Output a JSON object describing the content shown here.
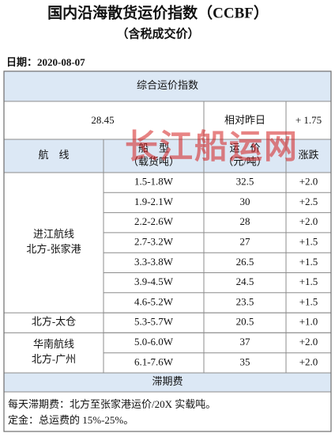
{
  "header": {
    "title": "国内沿海散货运价指数（CCBF）",
    "subtitle": "（含税成交价）"
  },
  "date": "日期：2020-08-07",
  "watermark": "长江船运网",
  "table": {
    "index_header": "综合运价指数",
    "index_value": "28.45",
    "compare_label": "相对昨日",
    "compare_value": "+ 1.75",
    "columns": [
      [
        "航　线"
      ],
      [
        "船　型",
        "（载货吨）"
      ],
      [
        "运　价",
        "（元/吨）"
      ],
      [
        "涨跌"
      ]
    ],
    "groups": [
      {
        "lines": [
          "进江航线",
          "北方-张家港"
        ],
        "rows": [
          [
            "1.5-1.8W",
            "32.5",
            "+2.0"
          ],
          [
            "1.9-2.1W",
            "30",
            "+2.5"
          ],
          [
            "2.2-2.6W",
            "28",
            "+2.0"
          ],
          [
            "2.7-3.2W",
            "27",
            "+1.5"
          ],
          [
            "3.3-3.8W",
            "26.5",
            "+1.5"
          ],
          [
            "3.9-4.5W",
            "24.5",
            "+1.5"
          ],
          [
            "4.6-5.2W",
            "23.5",
            "+1.5"
          ]
        ]
      },
      {
        "lines": [
          "北方-太仓"
        ],
        "rows": [
          [
            "5.3-5.7W",
            "20.5",
            "+1.0"
          ]
        ]
      },
      {
        "lines": [
          "华南航线",
          "北方-广州"
        ],
        "rows": [
          [
            "5.0-6.0W",
            "37",
            "+2.0"
          ],
          [
            "6.1-7.6W",
            "35",
            "+2.0"
          ]
        ]
      }
    ],
    "demurrage": {
      "title": "滞期费",
      "lines": [
        "每天滞期费：北方至张家港运价/20X 实载吨。",
        "定金：总运费的 15%-25%。"
      ]
    }
  }
}
